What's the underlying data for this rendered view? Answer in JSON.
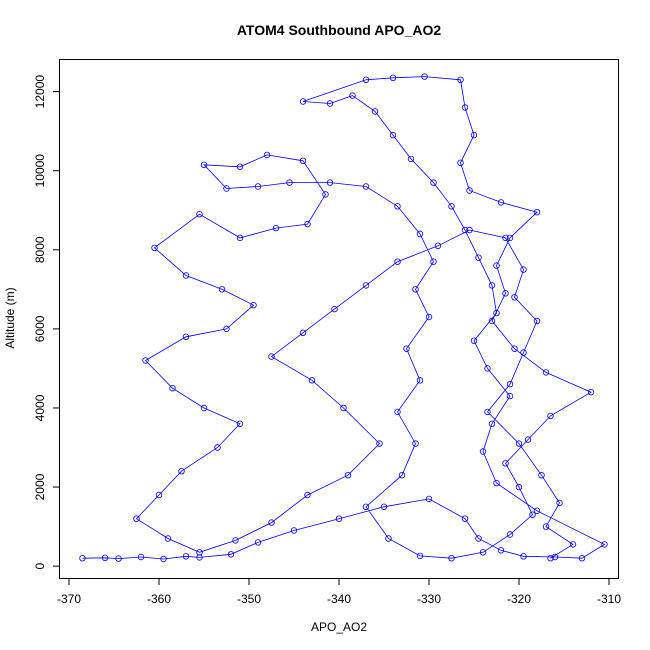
{
  "chart_data": {
    "type": "line",
    "title": "ATOM4 Southbound APO_AO2",
    "xlabel": "APO_AO2",
    "ylabel": "Altitude (m)",
    "xlim": [
      -371,
      -309
    ],
    "ylim": [
      -300,
      12800
    ],
    "xticks": [
      -370,
      -360,
      -350,
      -340,
      -330,
      -320,
      -310
    ],
    "yticks": [
      0,
      2000,
      4000,
      6000,
      8000,
      10000,
      12000
    ],
    "grid": false,
    "legend": "none",
    "series_color": "#0000ff",
    "marker": "open-circle",
    "series": [
      {
        "values_xy": [
          [
            -368.5,
            200
          ],
          [
            -366.0,
            210
          ],
          [
            -364.5,
            190
          ],
          [
            -362.0,
            230
          ],
          [
            -359.5,
            180
          ],
          [
            -357.0,
            250
          ],
          [
            -355.5,
            220
          ],
          [
            -352.0,
            300
          ],
          [
            -349.0,
            600
          ],
          [
            -345.0,
            900
          ],
          [
            -340.0,
            1200
          ],
          [
            -335.0,
            1500
          ],
          [
            -330.0,
            1700
          ],
          [
            -326.0,
            1200
          ],
          [
            -324.5,
            700
          ],
          [
            -322.0,
            400
          ],
          [
            -319.5,
            250
          ],
          [
            -316.0,
            230
          ],
          [
            -313.0,
            200
          ],
          [
            -310.5,
            550
          ],
          [
            -318.0,
            1400
          ],
          [
            -322.5,
            2100
          ],
          [
            -324.0,
            2900
          ],
          [
            -323.0,
            3600
          ],
          [
            -321.0,
            4300
          ],
          [
            -323.5,
            5000
          ],
          [
            -325.0,
            5700
          ],
          [
            -322.5,
            6400
          ],
          [
            -323.0,
            7100
          ],
          [
            -324.5,
            7800
          ],
          [
            -326.0,
            8500
          ],
          [
            -327.5,
            9100
          ],
          [
            -329.5,
            9700
          ],
          [
            -332.0,
            10300
          ],
          [
            -334.0,
            10900
          ],
          [
            -336.0,
            11500
          ],
          [
            -338.5,
            11900
          ],
          [
            -341.0,
            11700
          ],
          [
            -344.0,
            11750
          ],
          [
            -337.0,
            12300
          ],
          [
            -334.0,
            12350
          ],
          [
            -330.5,
            12380
          ],
          [
            -326.5,
            12300
          ],
          [
            -326.0,
            11600
          ],
          [
            -325.0,
            10900
          ],
          [
            -326.5,
            10200
          ],
          [
            -325.5,
            9500
          ],
          [
            -322.0,
            9200
          ],
          [
            -318.0,
            8950
          ],
          [
            -321.0,
            8300
          ],
          [
            -322.5,
            7600
          ],
          [
            -321.5,
            6900
          ],
          [
            -323.0,
            6200
          ],
          [
            -320.5,
            5500
          ],
          [
            -317.0,
            4900
          ],
          [
            -312.0,
            4400
          ],
          [
            -316.5,
            3800
          ],
          [
            -319.0,
            3200
          ],
          [
            -321.5,
            2600
          ],
          [
            -320.0,
            2000
          ],
          [
            -318.5,
            1300
          ],
          [
            -321.0,
            800
          ],
          [
            -324.0,
            350
          ],
          [
            -327.5,
            200
          ],
          [
            -331.0,
            260
          ],
          [
            -334.5,
            700
          ],
          [
            -337.0,
            1500
          ],
          [
            -333.0,
            2300
          ],
          [
            -331.5,
            3100
          ],
          [
            -333.5,
            3900
          ],
          [
            -331.0,
            4700
          ],
          [
            -332.5,
            5500
          ],
          [
            -330.0,
            6300
          ],
          [
            -331.5,
            7000
          ],
          [
            -329.5,
            7700
          ],
          [
            -331.0,
            8400
          ],
          [
            -333.5,
            9100
          ],
          [
            -337.0,
            9600
          ],
          [
            -341.0,
            9700
          ],
          [
            -345.5,
            9700
          ],
          [
            -349.0,
            9600
          ],
          [
            -352.5,
            9550
          ],
          [
            -355.0,
            10150
          ],
          [
            -351.0,
            10100
          ],
          [
            -348.0,
            10400
          ],
          [
            -344.0,
            10250
          ],
          [
            -341.5,
            9400
          ],
          [
            -343.5,
            8650
          ],
          [
            -347.0,
            8550
          ],
          [
            -351.0,
            8300
          ],
          [
            -355.5,
            8900
          ],
          [
            -360.5,
            8050
          ],
          [
            -357.0,
            7350
          ],
          [
            -353.0,
            7000
          ],
          [
            -349.5,
            6600
          ],
          [
            -352.5,
            6000
          ],
          [
            -357.0,
            5800
          ],
          [
            -361.5,
            5200
          ],
          [
            -358.5,
            4500
          ],
          [
            -355.0,
            4000
          ],
          [
            -351.0,
            3600
          ],
          [
            -353.5,
            3000
          ],
          [
            -357.5,
            2400
          ],
          [
            -360.0,
            1800
          ],
          [
            -362.5,
            1200
          ],
          [
            -359.0,
            700
          ],
          [
            -355.5,
            350
          ],
          [
            -351.5,
            650
          ],
          [
            -347.5,
            1100
          ],
          [
            -343.5,
            1800
          ],
          [
            -339.0,
            2300
          ],
          [
            -335.5,
            3100
          ],
          [
            -339.5,
            4000
          ],
          [
            -343.0,
            4700
          ],
          [
            -347.5,
            5300
          ],
          [
            -344.0,
            5900
          ],
          [
            -340.5,
            6500
          ],
          [
            -337.0,
            7100
          ],
          [
            -333.5,
            7700
          ],
          [
            -329.0,
            8100
          ],
          [
            -325.5,
            8500
          ],
          [
            -321.5,
            8300
          ],
          [
            -319.5,
            7500
          ],
          [
            -320.5,
            6800
          ],
          [
            -318.0,
            6200
          ],
          [
            -319.5,
            5400
          ],
          [
            -321.0,
            4600
          ],
          [
            -323.5,
            3900
          ],
          [
            -320.0,
            3100
          ],
          [
            -317.5,
            2300
          ],
          [
            -315.5,
            1600
          ],
          [
            -317.0,
            1000
          ],
          [
            -314.0,
            550
          ],
          [
            -316.5,
            200
          ]
        ]
      }
    ]
  }
}
